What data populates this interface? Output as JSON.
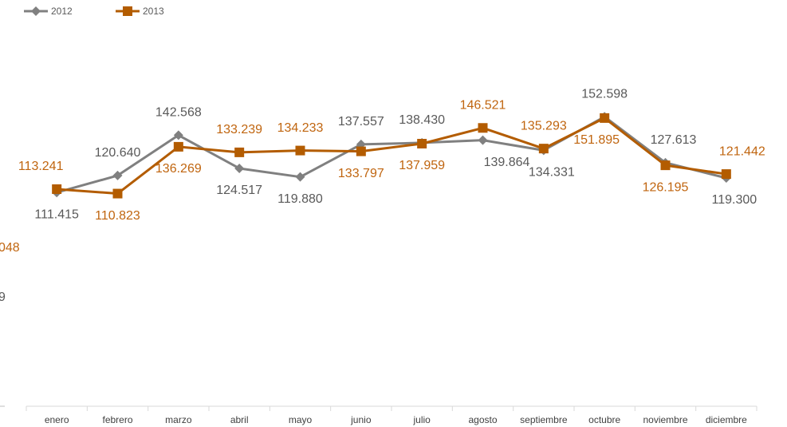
{
  "chart_data": {
    "type": "line",
    "categories": [
      "enero",
      "febrero",
      "marzo",
      "abril",
      "mayo",
      "junio",
      "julio",
      "agosto",
      "septiembre",
      "octubre",
      "noviembre",
      "diciembre"
    ],
    "series": [
      {
        "name": "2012",
        "color": "#808080",
        "label_color": "#595959",
        "marker": "diamond",
        "values": [
          111.415,
          120.64,
          142.568,
          124.517,
          119.88,
          137.557,
          138.43,
          139.864,
          134.331,
          152.598,
          127.613,
          119.3
        ],
        "value_labels": [
          "111.415",
          "120.640",
          "142.568",
          "124.517",
          "119.880",
          "137.557",
          "138.430",
          "139.864",
          "134.331",
          "152.598",
          "127.613",
          "119.300"
        ]
      },
      {
        "name": "2013",
        "color": "#b35c00",
        "label_color": "#c0650f",
        "marker": "square",
        "values": [
          113.241,
          110.823,
          136.269,
          133.239,
          134.233,
          133.797,
          137.959,
          146.521,
          135.293,
          151.895,
          126.195,
          121.442
        ],
        "value_labels": [
          "113.241",
          "110.823",
          "136.269",
          "133.239",
          "134.233",
          "133.797",
          "137.959",
          "146.521",
          "135.293",
          "151.895",
          "126.195",
          "121.442"
        ]
      }
    ],
    "annotations": [
      {
        "text": "048",
        "color": "#c0650f"
      },
      {
        "text": "9",
        "color": "#595959"
      }
    ],
    "ylim": [
      0,
      200
    ],
    "legend": "top-left"
  }
}
